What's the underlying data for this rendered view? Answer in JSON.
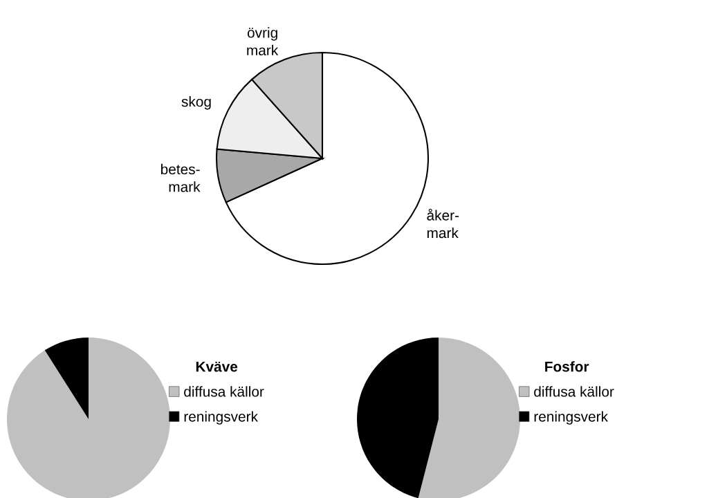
{
  "chart_data": [
    {
      "type": "pie",
      "categories": [
        "åker-\nmark",
        "betes-\nmark",
        "skog",
        "övrig\nmark"
      ],
      "values": [
        68.2,
        8.2,
        12.0,
        11.6
      ],
      "colors": [
        "#ffffff",
        "#a8a8a8",
        "#eeeeee",
        "#c8c8c8"
      ],
      "legend": false
    },
    {
      "type": "pie",
      "legend_title": "Kväve",
      "categories": [
        "diffusa källor",
        "reningsverk"
      ],
      "values": [
        91,
        9
      ],
      "colors": [
        "#c0c0c0",
        "#000000"
      ],
      "legend": "right"
    },
    {
      "type": "pie",
      "legend_title": "Fosfor",
      "categories": [
        "diffusa källor",
        "reningsverk"
      ],
      "values": [
        54,
        46
      ],
      "colors": [
        "#c0c0c0",
        "#000000"
      ],
      "legend": "right"
    }
  ]
}
